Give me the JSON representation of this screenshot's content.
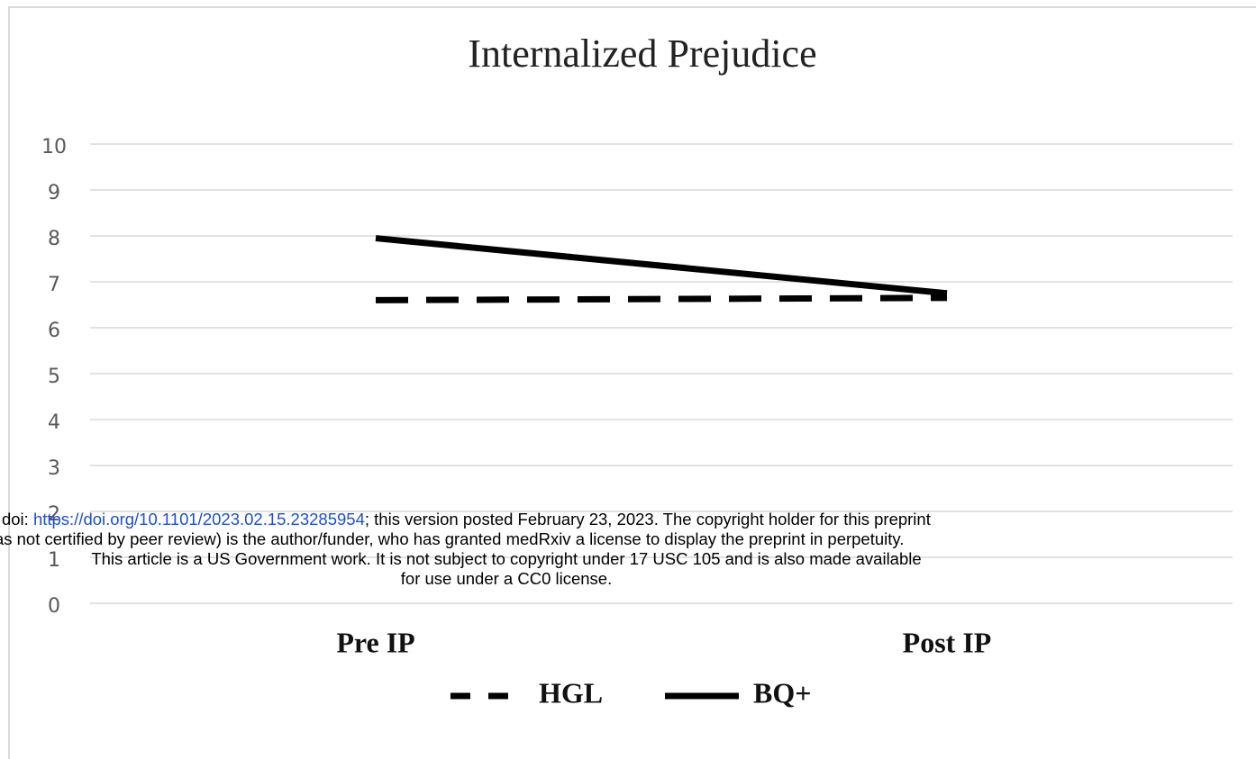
{
  "chart_data": {
    "type": "line",
    "title": "Internalized Prejudice",
    "categories": [
      "Pre IP",
      "Post IP"
    ],
    "series": [
      {
        "name": "HGL",
        "color": "#000000",
        "dash": true,
        "values": [
          6.6,
          6.65
        ]
      },
      {
        "name": "BQ+",
        "color": "#000000",
        "dash": false,
        "values": [
          7.95,
          6.75
        ]
      }
    ],
    "ylim": [
      0,
      10
    ],
    "yticks": [
      0,
      1,
      2,
      3,
      4,
      5,
      6,
      7,
      8,
      9,
      10
    ],
    "grid": true,
    "legend": "bottom"
  },
  "watermark": {
    "line1_start": "rint doi: ",
    "link": "https://doi.org/10.1101/2023.02.15.23285954",
    "line1_end": "; this version posted February 23, 2023. The copyright holder for this preprint",
    "line2": "was not certified by peer review) is the author/funder, who has granted medRxiv a license to display the preprint in perpetuity.",
    "line3": "This article is a US Government work. It is not subject to copyright under 17 USC 105 and is also made available",
    "line4": "for use under a CC0 license."
  }
}
